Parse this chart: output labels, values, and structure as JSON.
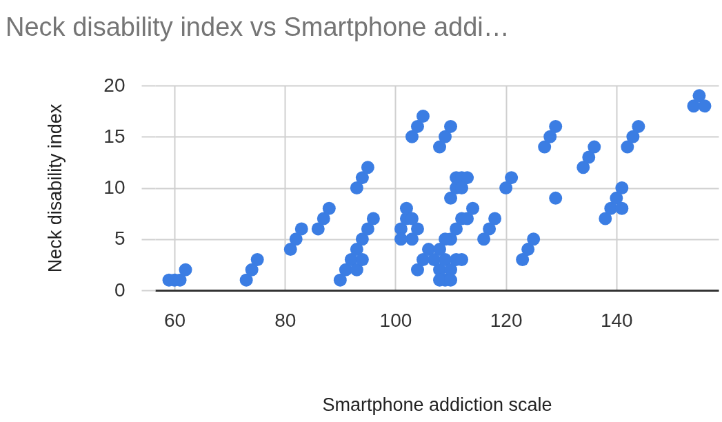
{
  "chart_data": {
    "type": "scatter",
    "title": "Neck disability index vs Smartphone addi…",
    "xlabel": "Smartphone addiction scale",
    "ylabel": "Neck disability index",
    "xlim": [
      56.5,
      158.5
    ],
    "xticks": [
      60,
      80,
      100,
      120,
      140
    ],
    "ylim": [
      0,
      20
    ],
    "yticks": [
      0,
      5,
      10,
      15,
      20
    ],
    "grid": true,
    "marker": "circle",
    "series": [
      {
        "color": "#3b7de3",
        "x": [
          59,
          60,
          61,
          62,
          73,
          74,
          75,
          81,
          82,
          83,
          86,
          87,
          88,
          93,
          94,
          95,
          90,
          91,
          92,
          93,
          94,
          95,
          96,
          93,
          94,
          101,
          102,
          102,
          103,
          103,
          101,
          104,
          103,
          104,
          105,
          108,
          109,
          110,
          104,
          105,
          106,
          107,
          108,
          109,
          109,
          110,
          111,
          110,
          111,
          112,
          109,
          108,
          112,
          108,
          110,
          110,
          111,
          111,
          112,
          113,
          112,
          113,
          114,
          116,
          117,
          118,
          120,
          121,
          129,
          123,
          124,
          125,
          127,
          128,
          129,
          134,
          135,
          136,
          138,
          139,
          140,
          141,
          141,
          142,
          143,
          144,
          154,
          155,
          156
        ],
        "values": [
          1,
          1,
          1,
          2,
          1,
          2,
          3,
          4,
          5,
          6,
          6,
          7,
          8,
          10,
          11,
          12,
          1,
          2,
          3,
          4,
          5,
          6,
          7,
          2,
          3,
          6,
          7,
          8,
          7,
          5,
          5,
          6,
          15,
          16,
          17,
          14,
          15,
          16,
          2,
          3,
          4,
          3,
          2,
          1,
          3,
          2,
          3,
          5,
          6,
          7,
          5,
          4,
          3,
          1,
          1,
          9,
          10,
          11,
          11,
          11,
          10,
          7,
          8,
          5,
          6,
          7,
          10,
          11,
          9,
          3,
          4,
          5,
          14,
          15,
          16,
          12,
          13,
          14,
          7,
          8,
          9,
          10,
          8,
          14,
          15,
          16,
          18,
          19,
          18
        ]
      }
    ]
  }
}
